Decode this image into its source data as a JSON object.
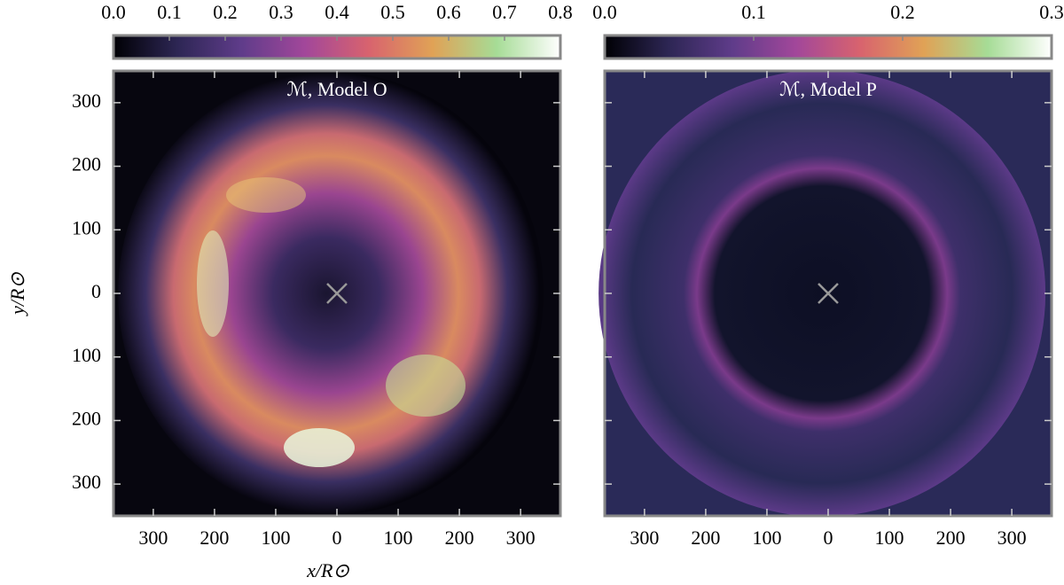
{
  "chart_data": [
    {
      "type": "heatmap",
      "title": "ℳ, Model O",
      "xlabel": "x/R⊙",
      "ylabel": "y/R⊙",
      "xlim": [
        -365,
        365
      ],
      "ylim": [
        -350,
        350
      ],
      "xticks": [
        {
          "value": -300,
          "label": "300"
        },
        {
          "value": -200,
          "label": "200"
        },
        {
          "value": -100,
          "label": "100"
        },
        0,
        100,
        200,
        300
      ],
      "yticks": [
        {
          "value": -300,
          "label": "300"
        },
        {
          "value": -200,
          "label": "200"
        },
        {
          "value": -100,
          "label": "100"
        },
        0,
        100,
        200,
        300
      ],
      "ytick_labels": true,
      "marker": {
        "x": 0,
        "y": 0
      },
      "colorbar": {
        "clim": [
          0,
          0.8
        ],
        "ticks": [
          {
            "value": 0,
            "label": "0.0"
          },
          0.1,
          0.2,
          0.3,
          0.4,
          0.5,
          0.6,
          0.7,
          0.8
        ]
      },
      "colormap": [
        "#000004",
        "#2d2654",
        "#5f3c8a",
        "#a2479a",
        "#d8636e",
        "#e0a256",
        "#a6dc96",
        "#ffffff"
      ]
    },
    {
      "type": "heatmap",
      "title": "ℳ, Model P",
      "xlim": [
        -365,
        365
      ],
      "ylim": [
        -350,
        350
      ],
      "xticks": [
        {
          "value": -300,
          "label": "300"
        },
        {
          "value": -200,
          "label": "200"
        },
        {
          "value": -100,
          "label": "100"
        },
        0,
        100,
        200,
        300
      ],
      "yticks": [
        -300,
        -200,
        -100,
        0,
        100,
        200,
        300
      ],
      "ytick_labels": false,
      "marker": {
        "x": 0,
        "y": 0
      },
      "colorbar": {
        "clim": [
          0,
          0.3
        ],
        "ticks": [
          {
            "value": 0,
            "label": "0.0"
          },
          0.1,
          0.2,
          0.3
        ]
      },
      "colormap": [
        "#000004",
        "#2d2654",
        "#5f3c8a",
        "#a2479a",
        "#d8636e",
        "#e0a256",
        "#a6dc96",
        "#ffffff"
      ]
    }
  ]
}
